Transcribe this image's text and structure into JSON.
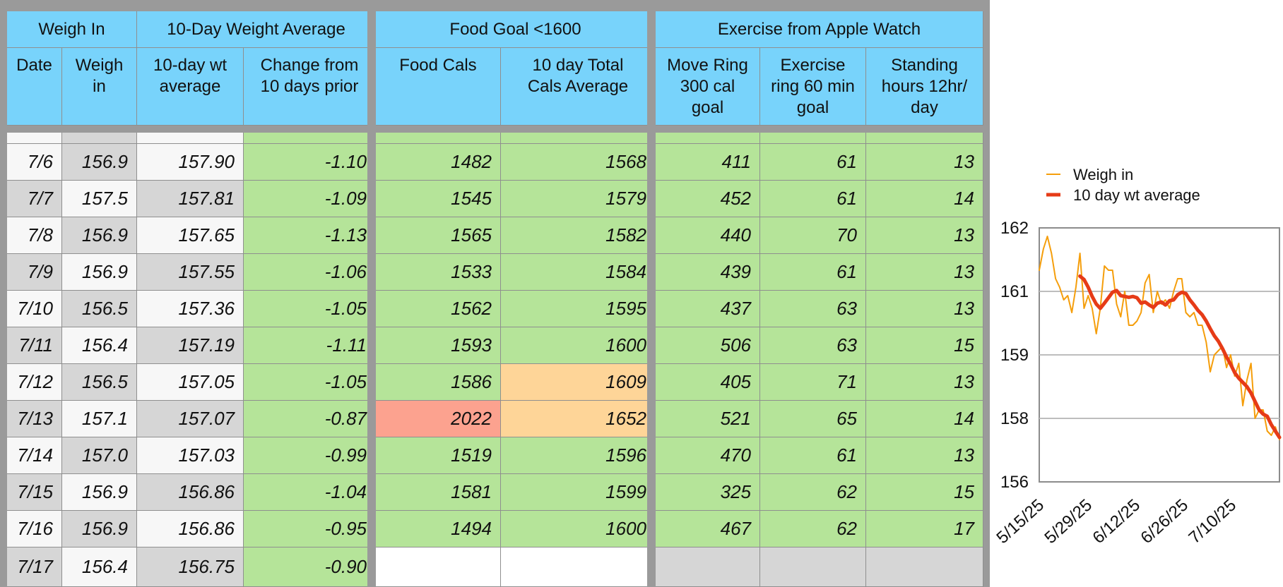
{
  "table": {
    "groups": [
      "Weigh In",
      "10-Day Weight Average",
      "Food Goal <1600",
      "Exercise from Apple Watch"
    ],
    "columns": [
      [
        "Date"
      ],
      [
        "Weigh",
        "in"
      ],
      [
        "10-day wt",
        "average"
      ],
      [
        "Change from",
        "10 days prior"
      ],
      [
        "Food Cals"
      ],
      [
        "10 day Total",
        "Cals Average"
      ],
      [
        "Move Ring",
        "300 cal",
        "goal"
      ],
      [
        "Exercise",
        "ring 60 min",
        "goal"
      ],
      [
        "Standing",
        "hours 12hr/",
        "day"
      ]
    ],
    "rows": [
      {
        "date": "7/6",
        "weigh": "156.9",
        "avg": "157.90",
        "change": "-1.10",
        "food": "1482",
        "food_avg": "1568",
        "move": "411",
        "exercise": "61",
        "stand": "13"
      },
      {
        "date": "7/7",
        "weigh": "157.5",
        "avg": "157.81",
        "change": "-1.09",
        "food": "1545",
        "food_avg": "1579",
        "move": "452",
        "exercise": "61",
        "stand": "14"
      },
      {
        "date": "7/8",
        "weigh": "156.9",
        "avg": "157.65",
        "change": "-1.13",
        "food": "1565",
        "food_avg": "1582",
        "move": "440",
        "exercise": "70",
        "stand": "13"
      },
      {
        "date": "7/9",
        "weigh": "156.9",
        "avg": "157.55",
        "change": "-1.06",
        "food": "1533",
        "food_avg": "1584",
        "move": "439",
        "exercise": "61",
        "stand": "13"
      },
      {
        "date": "7/10",
        "weigh": "156.5",
        "avg": "157.36",
        "change": "-1.05",
        "food": "1562",
        "food_avg": "1595",
        "move": "437",
        "exercise": "63",
        "stand": "13"
      },
      {
        "date": "7/11",
        "weigh": "156.4",
        "avg": "157.19",
        "change": "-1.11",
        "food": "1593",
        "food_avg": "1600",
        "move": "506",
        "exercise": "63",
        "stand": "15"
      },
      {
        "date": "7/12",
        "weigh": "156.5",
        "avg": "157.05",
        "change": "-1.05",
        "food": "1586",
        "food_avg": "1609",
        "move": "405",
        "exercise": "71",
        "stand": "13"
      },
      {
        "date": "7/13",
        "weigh": "157.1",
        "avg": "157.07",
        "change": "-0.87",
        "food": "2022",
        "food_avg": "1652",
        "move": "521",
        "exercise": "65",
        "stand": "14"
      },
      {
        "date": "7/14",
        "weigh": "157.0",
        "avg": "157.03",
        "change": "-0.99",
        "food": "1519",
        "food_avg": "1596",
        "move": "470",
        "exercise": "61",
        "stand": "13"
      },
      {
        "date": "7/15",
        "weigh": "156.9",
        "avg": "156.86",
        "change": "-1.04",
        "food": "1581",
        "food_avg": "1599",
        "move": "325",
        "exercise": "62",
        "stand": "15"
      },
      {
        "date": "7/16",
        "weigh": "156.9",
        "avg": "156.86",
        "change": "-0.95",
        "food": "1494",
        "food_avg": "1600",
        "move": "467",
        "exercise": "62",
        "stand": "17"
      },
      {
        "date": "7/17",
        "weigh": "156.4",
        "avg": "156.75",
        "change": "-0.90",
        "food": "",
        "food_avg": "",
        "move": "",
        "exercise": "",
        "stand": ""
      }
    ],
    "colors": {
      "header": "#78d3fb",
      "good": "#b5e499",
      "over_goal": "#fed598",
      "alert": "#fca28f",
      "row_light": "#f7f7f7",
      "row_dark": "#d6d6d6"
    }
  },
  "chart_data": {
    "type": "line",
    "title": "",
    "xlabel": "",
    "ylabel": "",
    "ylim": [
      156,
      162
    ],
    "yticks": [
      "162",
      "161",
      "159",
      "158",
      "156"
    ],
    "xticks": [
      "5/15/25",
      "5/29/25",
      "6/12/25",
      "6/26/25",
      "7/10/25"
    ],
    "legend": "top",
    "grid": true,
    "series": [
      {
        "name": "Weigh in",
        "color": "#f59e0b",
        "values": [
          161.0,
          161.5,
          161.8,
          161.4,
          160.8,
          160.6,
          160.3,
          160.4,
          160.0,
          160.6,
          161.4,
          160.1,
          160.4,
          160.1,
          159.5,
          160.1,
          161.1,
          161.0,
          161.0,
          160.2,
          159.9,
          160.5,
          159.7,
          159.7,
          159.8,
          160.0,
          160.7,
          160.9,
          160.0,
          160.5,
          160.2,
          160.3,
          160.1,
          160.5,
          160.8,
          160.8,
          160.0,
          159.9,
          160.0,
          159.7,
          159.7,
          159.3,
          158.6,
          159.0,
          159.1,
          159.2,
          158.7,
          159.0,
          158.5,
          158.8,
          157.8,
          158.4,
          158.8,
          157.5,
          157.7,
          157.7,
          157.2,
          157.1,
          157.3,
          157.0
        ]
      },
      {
        "name": "10 day wt average",
        "color": "#e63b17",
        "values": [
          null,
          null,
          null,
          null,
          null,
          null,
          null,
          null,
          null,
          null,
          160.86,
          160.78,
          160.6,
          160.38,
          160.2,
          160.1,
          160.22,
          160.35,
          160.48,
          160.52,
          160.4,
          160.38,
          160.36,
          160.38,
          160.35,
          160.22,
          160.25,
          160.18,
          160.12,
          160.22,
          160.25,
          160.18,
          160.28,
          160.3,
          160.42,
          160.48,
          160.45,
          160.3,
          160.18,
          160.05,
          159.95,
          159.8,
          159.62,
          159.45,
          159.32,
          159.15,
          158.95,
          158.78,
          158.58,
          158.45,
          158.35,
          158.25,
          158.1,
          157.9,
          157.7,
          157.6,
          157.55,
          157.35,
          157.2,
          157.05
        ]
      }
    ]
  }
}
